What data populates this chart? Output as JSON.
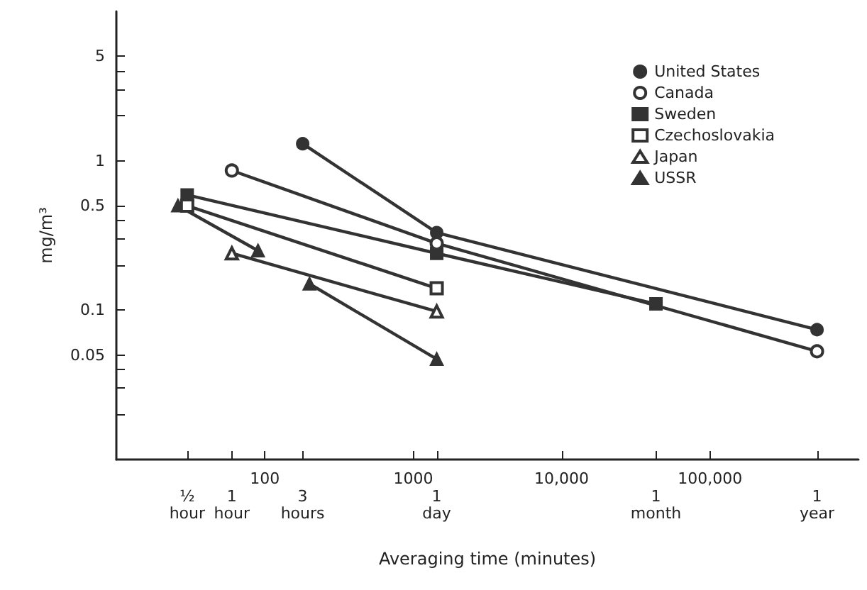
{
  "chart_data": {
    "type": "line",
    "xlabel": "Averaging time (minutes)",
    "ylabel": "mg/m³",
    "log": "xy",
    "grid": false,
    "legend": "top right",
    "line_style": "solid",
    "xlim": [
      10,
      1000000
    ],
    "ylim": [
      0.01,
      10
    ],
    "xticks": [
      100,
      1000,
      {
        "value": 10000,
        "label": "10,000"
      },
      {
        "value": 100000,
        "label": "100,000"
      },
      {
        "value": 30,
        "label": null
      },
      {
        "value": 60,
        "label": null
      },
      {
        "value": 180,
        "label": null
      },
      {
        "value": 1440,
        "label": null
      },
      {
        "value": 43200,
        "label": null
      },
      {
        "value": 525600,
        "label": null
      }
    ],
    "yticks": [
      0.05,
      0.1,
      0.5,
      1,
      5,
      {
        "value": 0.02,
        "label": null
      },
      {
        "value": 0.03,
        "label": null
      },
      {
        "value": 0.04,
        "label": null
      },
      {
        "value": 0.2,
        "label": null
      },
      {
        "value": 0.3,
        "label": null
      },
      {
        "value": 0.4,
        "label": null
      },
      {
        "value": 2,
        "label": null
      },
      {
        "value": 3,
        "label": null
      },
      {
        "value": 4,
        "label": null
      }
    ],
    "annotations": [
      "½\nhour",
      "1\nhour",
      "3\nhours",
      "1\nday",
      "1\nmonth",
      "1\nyear"
    ],
    "series": [
      {
        "name": "United States",
        "color": "#333333",
        "marker": "circle",
        "x": [
          180,
          1440,
          525600
        ],
        "values": [
          1.3,
          0.33,
          0.074
        ]
      },
      {
        "name": "Canada",
        "color": "#333333",
        "marker": "circle-open",
        "x": [
          60,
          1440,
          525600
        ],
        "values": [
          0.86,
          0.28,
          0.053
        ]
      },
      {
        "name": "Sweden",
        "color": "#333333",
        "marker": "square",
        "x": [
          30,
          1440,
          43200
        ],
        "values": [
          0.59,
          0.24,
          0.11
        ]
      },
      {
        "name": "Czechoslovakia",
        "color": "#333333",
        "marker": "square-open",
        "x": [
          30,
          1440
        ],
        "values": [
          0.5,
          0.14
        ]
      },
      {
        "name": "Japan",
        "color": "#333333",
        "marker": "triangle-open",
        "x": [
          60,
          1440
        ],
        "values": [
          0.24,
          0.098
        ]
      },
      {
        "name": "USSR",
        "color": "#333333",
        "marker": "triangle",
        "x": [
          26,
          90,
          120,
          200,
          1440
        ],
        "values": [
          0.5,
          0.25,
          null,
          0.15,
          0.047
        ]
      }
    ]
  }
}
